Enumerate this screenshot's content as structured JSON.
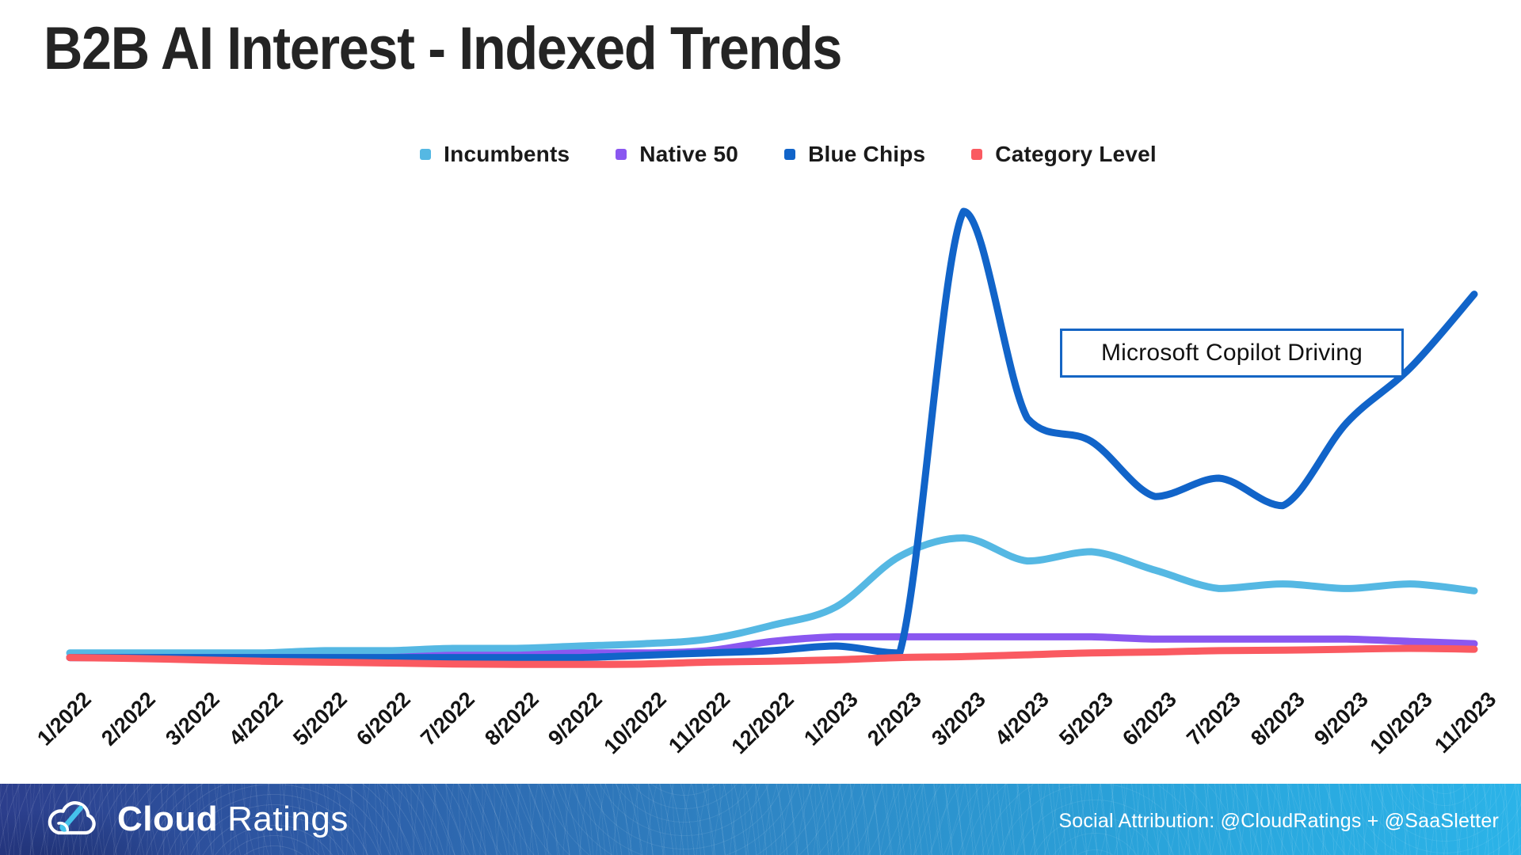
{
  "header": {
    "title": "B2B AI Interest - Indexed Trends"
  },
  "legend": {
    "items": [
      {
        "label": "Incumbents",
        "color": "#55b8e3"
      },
      {
        "label": "Native 50",
        "color": "#8a57f0"
      },
      {
        "label": "Blue Chips",
        "color": "#1164c9"
      },
      {
        "label": "Category Level",
        "color": "#fa5a61"
      }
    ]
  },
  "chart_data": {
    "type": "line",
    "title": "B2B AI Interest - Indexed Trends",
    "xlabel": "",
    "ylabel": "",
    "ylim": [
      0,
      105
    ],
    "grid": false,
    "legend_position": "top-center",
    "x_tick_rotation": -45,
    "categories": [
      "1/2022",
      "2/2022",
      "3/2022",
      "4/2022",
      "5/2022",
      "6/2022",
      "7/2022",
      "8/2022",
      "9/2022",
      "10/2022",
      "11/2022",
      "12/2022",
      "1/2023",
      "2/2023",
      "3/2023",
      "4/2023",
      "5/2023",
      "6/2023",
      "7/2023",
      "8/2023",
      "9/2023",
      "10/2023",
      "11/2023"
    ],
    "series": [
      {
        "name": "Incumbents",
        "color": "#55b8e3",
        "values": [
          4,
          4,
          4,
          4,
          4.5,
          4.5,
          5,
          5,
          5.5,
          6,
          7,
          10,
          14,
          25,
          29,
          24,
          26,
          22,
          18,
          19,
          18,
          19,
          17.5
        ]
      },
      {
        "name": "Native 50",
        "color": "#8a57f0",
        "values": [
          3,
          3,
          3,
          3,
          3,
          3,
          3.5,
          3.5,
          4,
          4,
          4.5,
          6.5,
          7.5,
          7.5,
          7.5,
          7.5,
          7.5,
          7,
          7,
          7,
          7,
          6.5,
          6
        ]
      },
      {
        "name": "Blue Chips",
        "color": "#1164c9",
        "values": [
          3,
          3,
          3,
          3,
          3,
          3,
          3,
          3,
          3,
          3.5,
          4,
          4.5,
          5.5,
          4,
          100,
          55,
          50,
          38,
          42,
          36,
          54,
          66,
          82
        ]
      },
      {
        "name": "Category Level",
        "color": "#fa5a61",
        "values": [
          3,
          2.8,
          2.5,
          2.2,
          2,
          1.8,
          1.6,
          1.5,
          1.5,
          1.6,
          2,
          2.2,
          2.5,
          3,
          3.2,
          3.6,
          4,
          4.2,
          4.5,
          4.6,
          4.8,
          5,
          4.8
        ]
      }
    ],
    "annotation": "Microsoft Copilot Driving"
  },
  "annotation": {
    "text": "Microsoft Copilot Driving",
    "border_color": "#1565c4"
  },
  "footer": {
    "brand_bold": "Cloud",
    "brand_light": "Ratings",
    "attribution": "Social Attribution: @CloudRatings + @SaaSletter"
  }
}
